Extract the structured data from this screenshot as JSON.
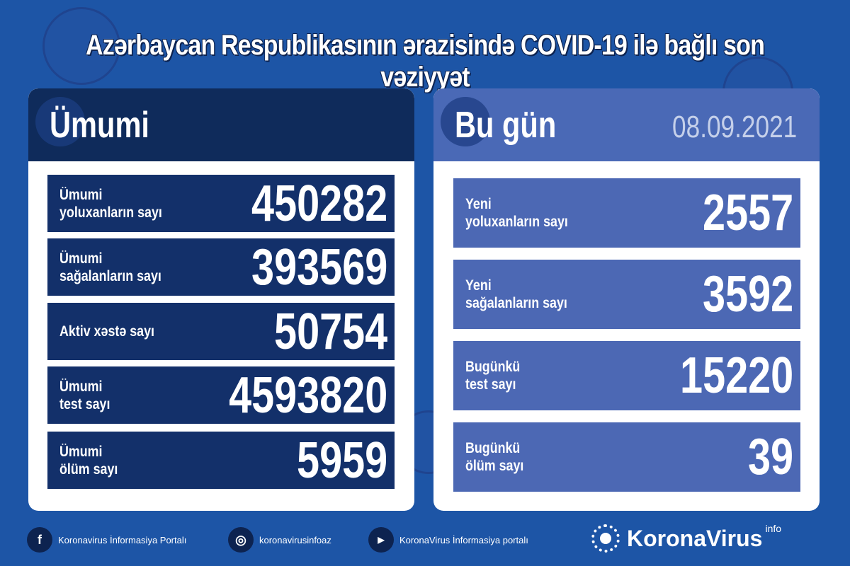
{
  "title": "Azərbaycan Respublikasının ərazisində COVID-19 ilə bağlı son vəziyyət",
  "total": {
    "heading": "Ümumi",
    "rows": [
      {
        "label": "Ümumi\nyoluxanların sayı",
        "value": "450282"
      },
      {
        "label": "Ümumi\nsağalanların sayı",
        "value": "393569"
      },
      {
        "label": "Aktiv xəstə sayı",
        "value": "50754"
      },
      {
        "label": "Ümumi\ntest sayı",
        "value": "4593820"
      },
      {
        "label": "Ümumi\nölüm sayı",
        "value": "5959"
      }
    ]
  },
  "today": {
    "heading": "Bu gün",
    "date": "08.09.2021",
    "rows": [
      {
        "label": "Yeni\nyoluxanların sayı",
        "value": "2557"
      },
      {
        "label": "Yeni\nsağalanların sayı",
        "value": "3592"
      },
      {
        "label": "Bugünkü\ntest sayı",
        "value": "15220"
      },
      {
        "label": "Bugünkü\nölüm sayı",
        "value": "39"
      }
    ]
  },
  "footer": {
    "facebook": "Koronavirus İnformasiya Portalı",
    "instagram": "koronavirusinfoaz",
    "youtube": "KoronaVirus İnformasiya portalı",
    "brand": "KoronaVirus",
    "brand_sup": "info"
  },
  "colors": {
    "background": "#1d55a6",
    "navy": "#0f2b5b",
    "row_navy": "#13306a",
    "light_blue": "#4c68b4"
  }
}
